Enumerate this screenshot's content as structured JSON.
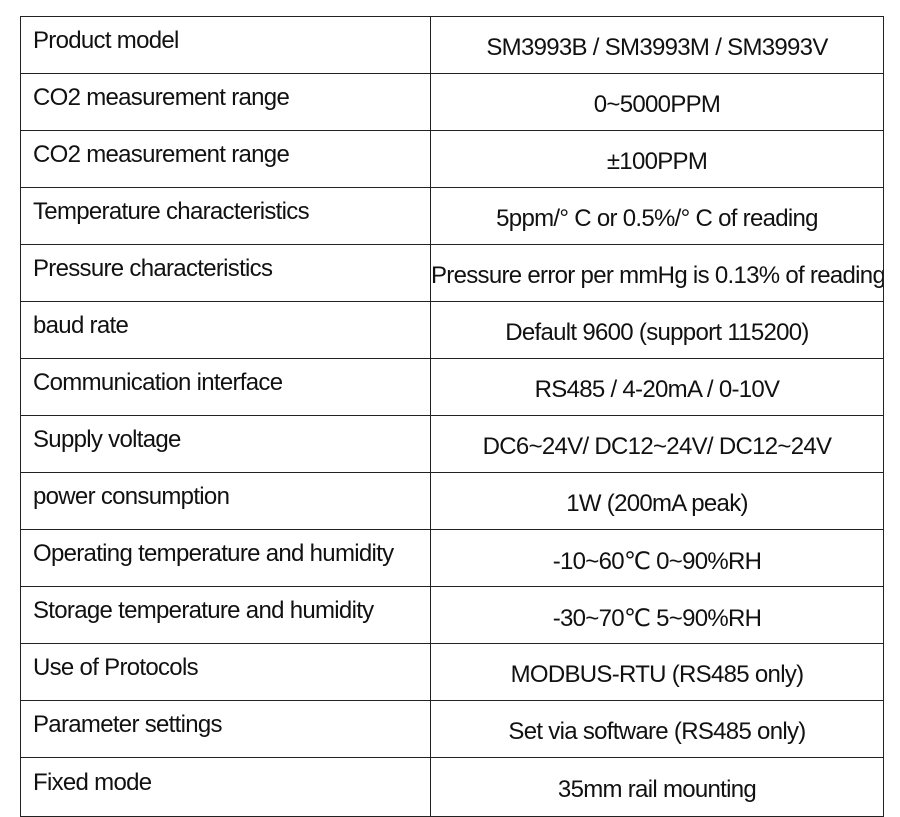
{
  "spec_table": {
    "rows": [
      {
        "label": "Product model",
        "value": "SM3993B / SM3993M / SM3993V"
      },
      {
        "label": "CO2 measurement range",
        "value": "0~5000PPM"
      },
      {
        "label": "CO2 measurement range",
        "value": "±100PPM"
      },
      {
        "label": "Temperature characteristics",
        "value": "5ppm/° C or 0.5%/° C of reading"
      },
      {
        "label": "Pressure characteristics",
        "value": "Pressure error per mmHg is 0.13% of reading"
      },
      {
        "label": "baud rate",
        "value": "Default 9600 (support 115200)"
      },
      {
        "label": "Communication interface",
        "value": "RS485 /  4-20mA /  0-10V"
      },
      {
        "label": "Supply voltage",
        "value": "DC6~24V/ DC12~24V/ DC12~24V"
      },
      {
        "label": "power consumption",
        "value": "1W (200mA peak)"
      },
      {
        "label": "Operating temperature and humidity",
        "value": "-10~60℃ 0~90%RH"
      },
      {
        "label": "Storage temperature and humidity",
        "value": "-30~70℃ 5~90%RH"
      },
      {
        "label": "Use of Protocols",
        "value": "MODBUS-RTU (RS485 only)"
      },
      {
        "label": "Parameter settings",
        "value": "Set via software (RS485 only)"
      },
      {
        "label": "Fixed mode",
        "value": "35mm rail mounting"
      }
    ]
  }
}
